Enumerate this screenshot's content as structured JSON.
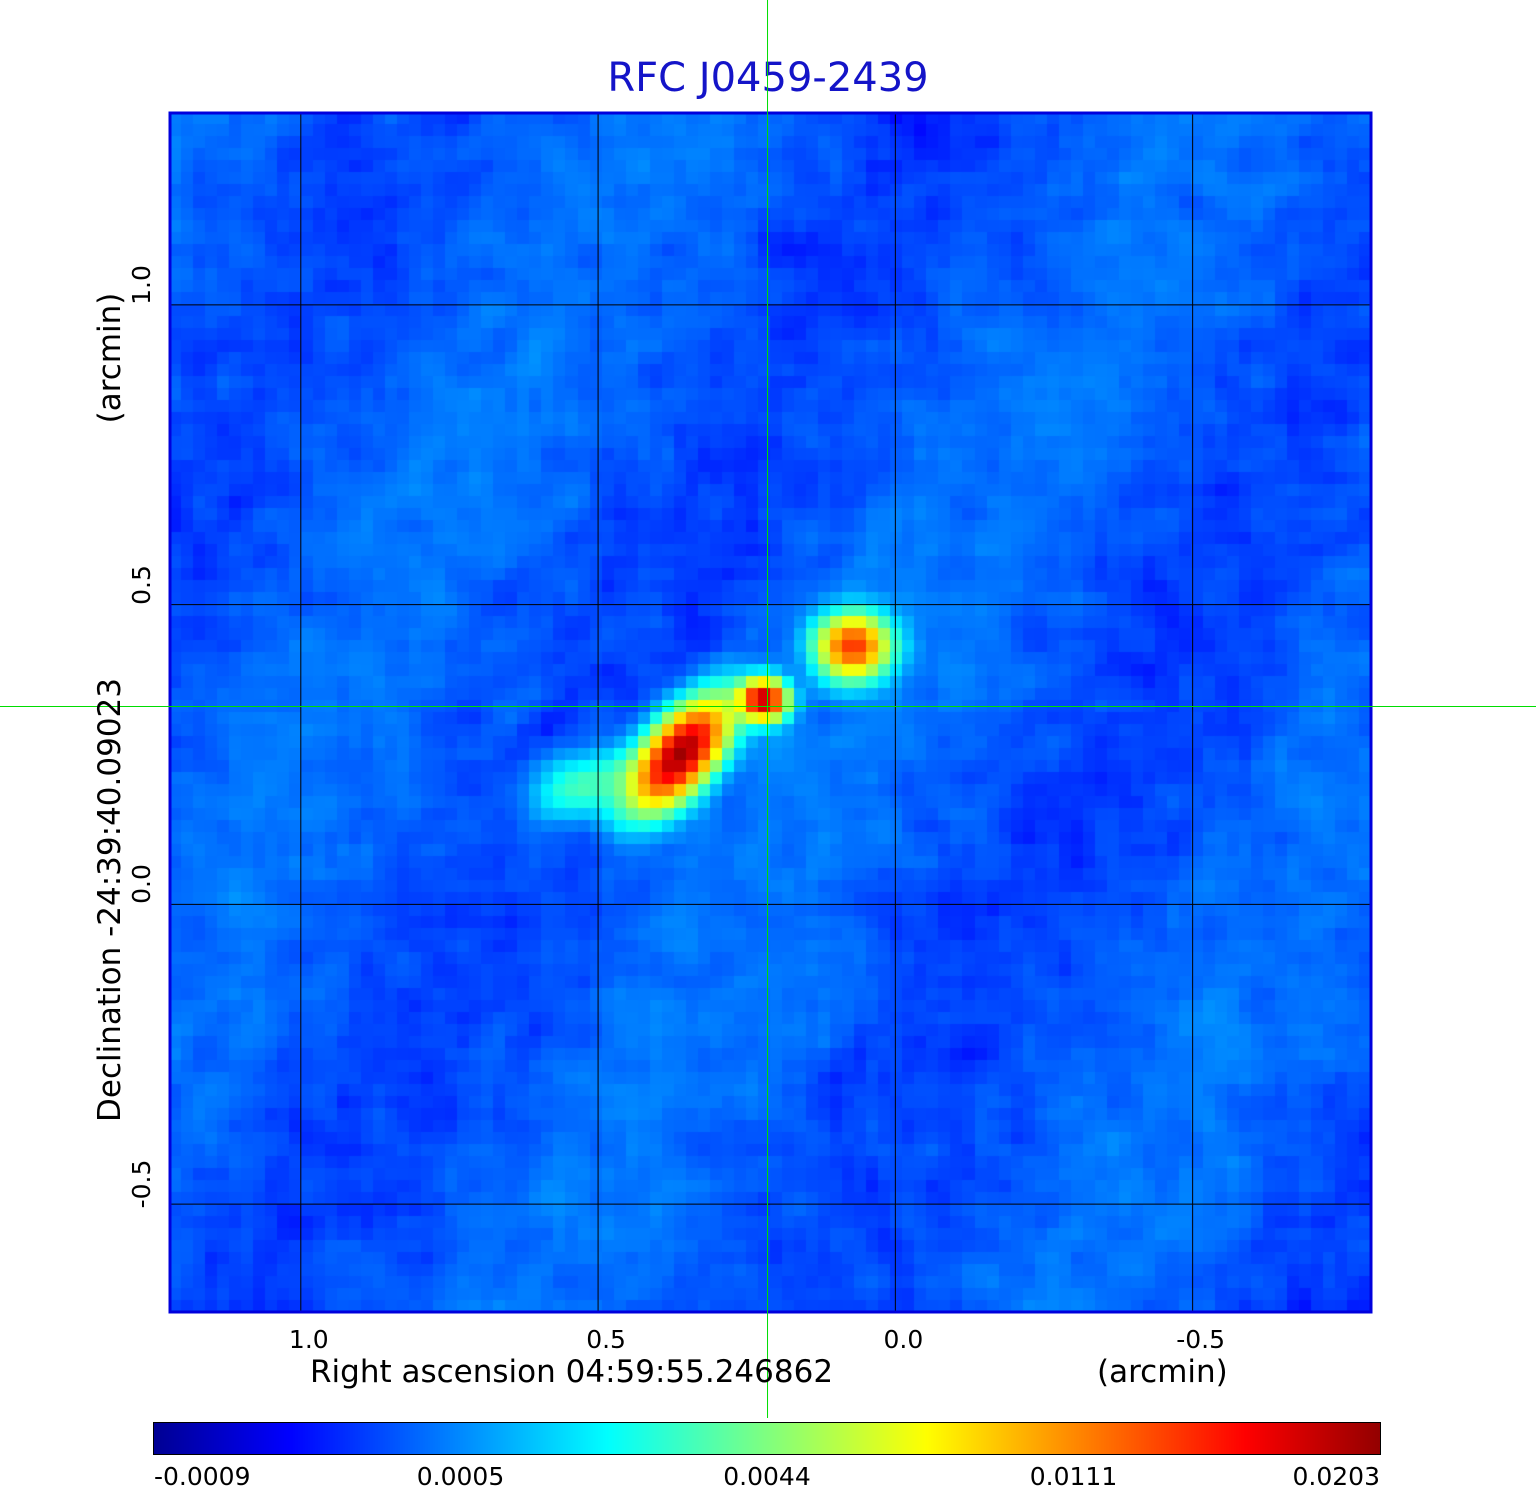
{
  "chart_data": {
    "type": "heatmap",
    "title": "RFC J0459-2439",
    "xlabel": "Right ascension  04:59:55.246862",
    "xunit": "(arcmin)",
    "ylabel": "Declination  -24:39:40.09023",
    "yunit": "(arcmin)",
    "xlim": [
      1.22,
      -0.8
    ],
    "ylim": [
      -0.68,
      1.32
    ],
    "x_ticks": [
      {
        "value": 1.0,
        "label": "1.0"
      },
      {
        "value": 0.5,
        "label": "0.5"
      },
      {
        "value": 0.0,
        "label": "0.0"
      },
      {
        "value": -0.5,
        "label": "-0.5"
      }
    ],
    "y_ticks": [
      {
        "value": 1.0,
        "label": "1.0"
      },
      {
        "value": 0.5,
        "label": "0.5"
      },
      {
        "value": 0.0,
        "label": "0.0"
      },
      {
        "value": -0.5,
        "label": "-0.5"
      }
    ],
    "grid": true,
    "crosshair": {
      "x": 0.215,
      "y": 0.33
    },
    "colorbar": {
      "colormap": "jet",
      "min": -0.0009,
      "max": 0.0203,
      "ticks": [
        "-0.0009",
        "0.0005",
        "0.0044",
        "0.0111",
        "0.0203"
      ]
    },
    "sources": [
      {
        "x": 0.36,
        "y": 0.25,
        "peak": 0.0203,
        "sigma_major": 0.07,
        "sigma_minor": 0.035,
        "angle_deg": 50
      },
      {
        "x": 0.22,
        "y": 0.34,
        "peak": 0.019,
        "sigma_major": 0.025,
        "sigma_minor": 0.022,
        "angle_deg": 0
      },
      {
        "x": 0.07,
        "y": 0.43,
        "peak": 0.014,
        "sigma_major": 0.04,
        "sigma_minor": 0.035,
        "angle_deg": 0
      },
      {
        "x": 0.52,
        "y": 0.2,
        "peak": 0.0035,
        "sigma_major": 0.06,
        "sigma_minor": 0.035,
        "angle_deg": 20
      }
    ],
    "colors": {
      "title": "#1414c8",
      "frame": "#0000dd",
      "grid": "#000000",
      "crosshair": "#00dd00"
    }
  }
}
